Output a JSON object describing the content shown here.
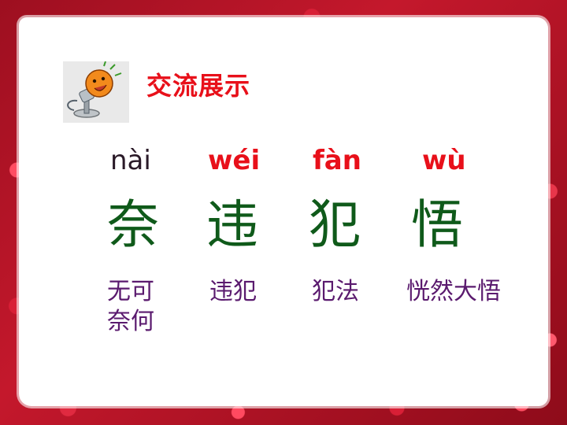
{
  "title": "交流展示",
  "items": [
    {
      "pinyin": "nài",
      "char": "奈",
      "word_line1": "无可",
      "word_line2": "奈何"
    },
    {
      "pinyin": "wéi",
      "char": "违",
      "word_line1": "违犯",
      "word_line2": ""
    },
    {
      "pinyin": "fàn",
      "char": "犯",
      "word_line1": "犯法",
      "word_line2": ""
    },
    {
      "pinyin": "wù",
      "char": "悟",
      "word_line1": "恍然大悟",
      "word_line2": ""
    }
  ],
  "icons": {
    "microphone": "cartoon-microphone-icon"
  },
  "colors": {
    "title": "#e8101a",
    "pinyin_highlight": "#e8101a",
    "hanzi": "#0f5a1a",
    "words": "#5a1a6e",
    "frame": "#b3142a"
  }
}
